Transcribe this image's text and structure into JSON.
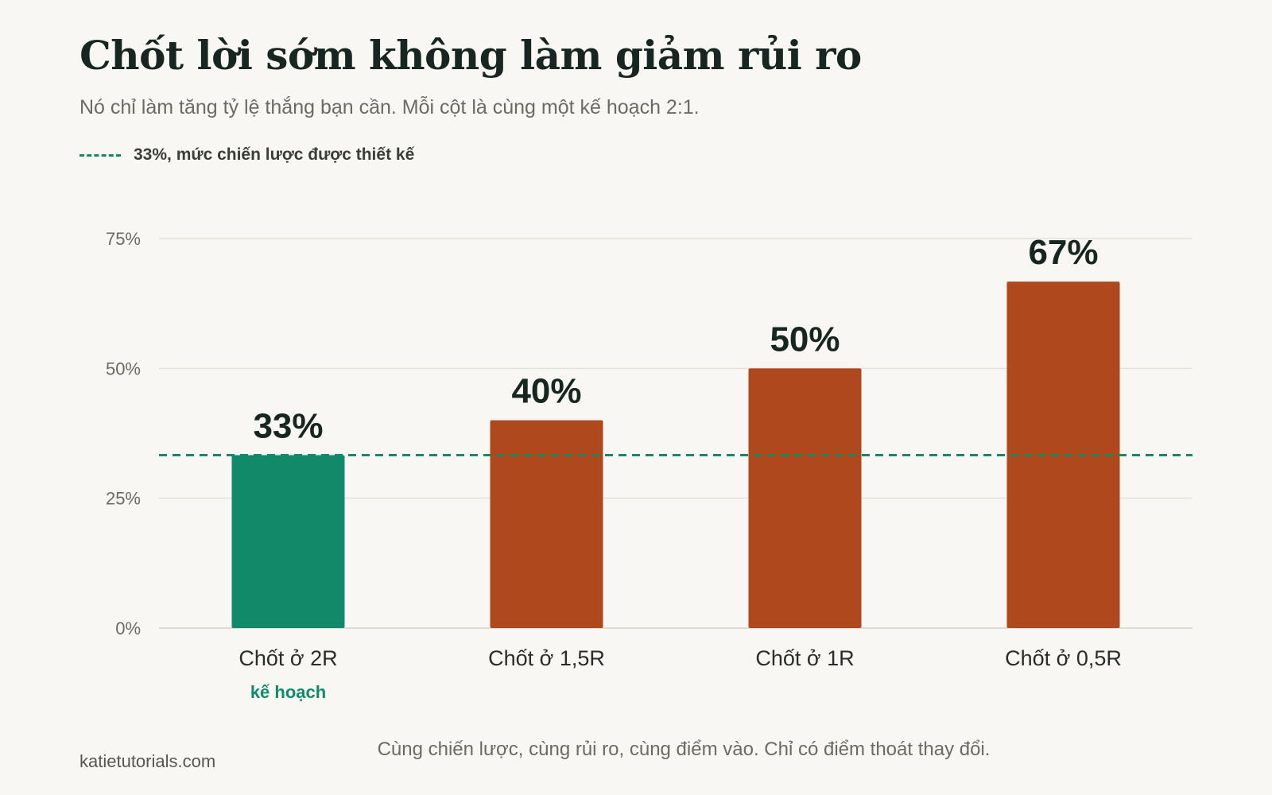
{
  "header": {
    "title": "Chốt lời sớm không làm giảm rủi ro",
    "subtitle": "Nó chỉ làm tăng tỷ lệ thắng bạn cần. Mỗi cột là cùng một kế hoạch 2:1."
  },
  "legend": {
    "reference_label": "33%, mức chiến lược được thiết kế"
  },
  "chart_data": {
    "type": "bar",
    "categories": [
      "Chốt ở 2R",
      "Chốt ở 1,5R",
      "Chốt ở 1R",
      "Chốt ở 0,5R"
    ],
    "values": [
      33.3,
      40,
      50,
      66.7
    ],
    "value_labels": [
      "33%",
      "40%",
      "50%",
      "67%"
    ],
    "category_sublabels": [
      "kế hoạch",
      "",
      "",
      ""
    ],
    "bar_colors": [
      "#128a6a",
      "#b0481d",
      "#b0481d",
      "#b0481d"
    ],
    "ylim": [
      0,
      75
    ],
    "yticks": [
      0,
      25,
      50,
      75
    ],
    "ytick_labels": [
      "0%",
      "25%",
      "50%",
      "75%"
    ],
    "reference_line": {
      "value": 33.3,
      "color": "#128a6a",
      "style": "dashed"
    },
    "grid": true,
    "legend_position": "top-left"
  },
  "footer": {
    "source": "katietutorials.com",
    "note": "Cùng chiến lược, cùng rủi ro, cùng điểm vào. Chỉ có điểm thoát thay đổi."
  }
}
